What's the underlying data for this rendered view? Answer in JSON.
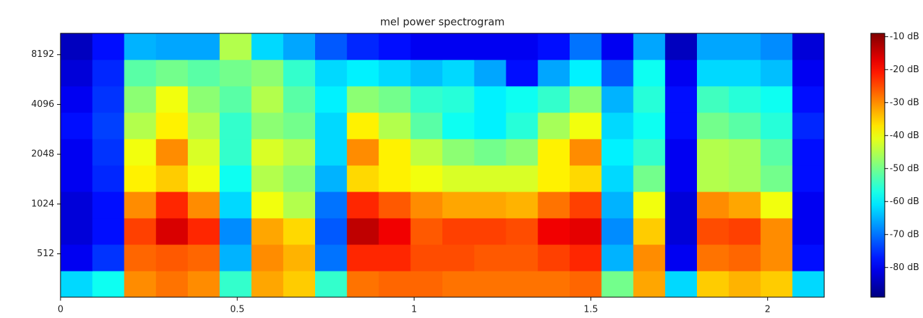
{
  "chart_data": {
    "type": "heatmap",
    "title": "mel power spectrogram",
    "x_edges": [
      0,
      0.09,
      0.18,
      0.27,
      0.36,
      0.45,
      0.54,
      0.63,
      0.72,
      0.81,
      0.9,
      0.99,
      1.08,
      1.17,
      1.26,
      1.35,
      1.44,
      1.53,
      1.62,
      1.71,
      1.8,
      1.89,
      1.98,
      2.07,
      2.16
    ],
    "y_edges": [
      280,
      404,
      584,
      843,
      1218,
      1758,
      2539,
      3667,
      5295,
      7647,
      11025
    ],
    "z": [
      [
        -62,
        -58,
        -30,
        -28,
        -30,
        -55,
        -32,
        -35,
        -55,
        -28,
        -27,
        -27,
        -28,
        -28,
        -28,
        -28,
        -27,
        -50,
        -32,
        -62,
        -35,
        -33,
        -35,
        -62
      ],
      [
        -80,
        -75,
        -27,
        -26,
        -27,
        -65,
        -30,
        -33,
        -70,
        -22,
        -22,
        -25,
        -25,
        -26,
        -26,
        -24,
        -22,
        -65,
        -30,
        -80,
        -28,
        -27,
        -30,
        -78
      ],
      [
        -82,
        -78,
        -24,
        -16,
        -22,
        -68,
        -32,
        -36,
        -72,
        -14,
        -18,
        -26,
        -24,
        -24,
        -25,
        -18,
        -17,
        -68,
        -35,
        -82,
        -25,
        -24,
        -30,
        -80
      ],
      [
        -82,
        -78,
        -30,
        -22,
        -30,
        -62,
        -40,
        -45,
        -70,
        -22,
        -26,
        -30,
        -32,
        -32,
        -33,
        -28,
        -24,
        -65,
        -40,
        -82,
        -30,
        -32,
        -40,
        -80
      ],
      [
        -80,
        -76,
        -38,
        -35,
        -40,
        -58,
        -45,
        -48,
        -65,
        -36,
        -38,
        -40,
        -42,
        -42,
        -42,
        -38,
        -36,
        -62,
        -50,
        -80,
        -45,
        -46,
        -50,
        -78
      ],
      [
        -80,
        -75,
        -40,
        -30,
        -42,
        -55,
        -42,
        -45,
        -62,
        -30,
        -38,
        -44,
        -48,
        -50,
        -48,
        -38,
        -30,
        -60,
        -55,
        -80,
        -45,
        -46,
        -52,
        -78
      ],
      [
        -78,
        -74,
        -45,
        -38,
        -45,
        -55,
        -48,
        -50,
        -62,
        -38,
        -45,
        -52,
        -58,
        -60,
        -56,
        -46,
        -40,
        -62,
        -58,
        -78,
        -50,
        -52,
        -56,
        -76
      ],
      [
        -80,
        -75,
        -48,
        -40,
        -48,
        -52,
        -45,
        -52,
        -60,
        -48,
        -50,
        -55,
        -56,
        -60,
        -58,
        -55,
        -48,
        -65,
        -56,
        -78,
        -54,
        -56,
        -58,
        -78
      ],
      [
        -82,
        -76,
        -52,
        -50,
        -52,
        -50,
        -48,
        -55,
        -62,
        -60,
        -62,
        -64,
        -62,
        -66,
        -78,
        -66,
        -60,
        -72,
        -58,
        -80,
        -62,
        -62,
        -64,
        -80
      ],
      [
        -84,
        -78,
        -65,
        -66,
        -66,
        -45,
        -62,
        -66,
        -72,
        -76,
        -78,
        -80,
        -80,
        -80,
        -80,
        -78,
        -70,
        -80,
        -66,
        -84,
        -66,
        -66,
        -68,
        -82
      ]
    ],
    "xlim": [
      0,
      2.16
    ],
    "xticks": [
      0,
      0.5,
      1,
      1.5,
      2
    ],
    "ylim": [
      280,
      11025
    ],
    "yscale": "log",
    "yticks": [
      512,
      1024,
      2048,
      4096,
      8192
    ],
    "colormap": "jet",
    "clim": [
      -89,
      -9
    ],
    "colorbar_ticks": [
      {
        "value": -10,
        "label": "-10 dB"
      },
      {
        "value": -20,
        "label": "-20 dB"
      },
      {
        "value": -30,
        "label": "-30 dB"
      },
      {
        "value": -40,
        "label": "-40 dB"
      },
      {
        "value": -50,
        "label": "-50 dB"
      },
      {
        "value": -60,
        "label": "-60 dB"
      },
      {
        "value": -70,
        "label": "-70 dB"
      },
      {
        "value": -80,
        "label": "-80 dB"
      }
    ]
  }
}
